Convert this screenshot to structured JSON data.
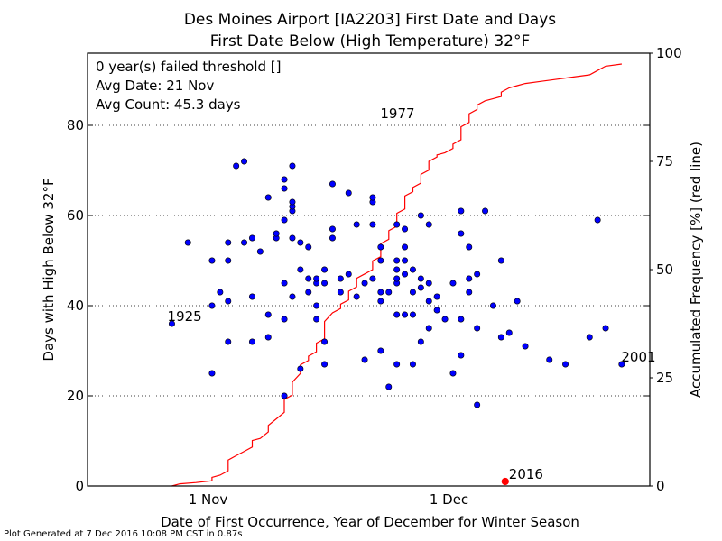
{
  "chart_data": {
    "type": "scatter",
    "title_line1": "Des Moines Airport [IA2203] First Date and Days",
    "title_line2": "First Date Below (High Temperature) 32°F",
    "xlabel": "Date of First Occurrence, Year of December for Winter Season",
    "ylabel": "Days with High Below 32°F",
    "y2label": "Accumulated Frequency [%] (red line)",
    "x_ticks": [
      {
        "day": 0,
        "label": "1 Nov"
      },
      {
        "day": 30,
        "label": "1 Dec"
      }
    ],
    "xlim": [
      -15,
      55
    ],
    "ylim": [
      0,
      96
    ],
    "y_ticks": [
      0,
      20,
      40,
      60,
      80
    ],
    "y2lim": [
      0,
      100
    ],
    "y2_ticks": [
      0,
      25,
      50,
      75,
      100
    ],
    "grid": true,
    "info_box": {
      "line1": "0 year(s) failed threshold []",
      "line2": "Avg Date: 21 Nov",
      "line3": "Avg Count: 45.3 days"
    },
    "annotations": [
      {
        "text": "1977",
        "x": 21,
        "y": 81
      },
      {
        "text": "1925",
        "x": -5.5,
        "y": 36
      },
      {
        "text": "2001",
        "x": 51,
        "y": 27
      },
      {
        "text": "2016",
        "x": 37,
        "y": 1,
        "color": "#ff0000"
      }
    ],
    "current": {
      "year": "2016",
      "x": 37,
      "y": 1,
      "color": "#ff0000"
    },
    "points": [
      [
        -4.5,
        36
      ],
      [
        -2.5,
        54
      ],
      [
        0.5,
        25
      ],
      [
        0.5,
        40
      ],
      [
        0.5,
        50
      ],
      [
        1.5,
        43
      ],
      [
        2.5,
        32
      ],
      [
        2.5,
        41
      ],
      [
        2.5,
        50
      ],
      [
        2.5,
        54
      ],
      [
        3.5,
        71
      ],
      [
        4.5,
        54
      ],
      [
        4.5,
        72
      ],
      [
        5.5,
        32
      ],
      [
        5.5,
        42
      ],
      [
        5.5,
        55
      ],
      [
        6.5,
        52
      ],
      [
        7.5,
        64
      ],
      [
        7.5,
        38
      ],
      [
        7.5,
        33
      ],
      [
        8.5,
        55
      ],
      [
        8.5,
        56
      ],
      [
        9.5,
        20
      ],
      [
        9.5,
        37
      ],
      [
        9.5,
        45
      ],
      [
        9.5,
        59
      ],
      [
        9.5,
        66
      ],
      [
        9.5,
        68
      ],
      [
        10.5,
        42
      ],
      [
        10.5,
        55
      ],
      [
        10.5,
        61
      ],
      [
        10.5,
        62
      ],
      [
        10.5,
        63
      ],
      [
        10.5,
        71
      ],
      [
        11.5,
        26
      ],
      [
        11.5,
        48
      ],
      [
        11.5,
        54
      ],
      [
        12.5,
        43
      ],
      [
        12.5,
        46
      ],
      [
        12.5,
        53
      ],
      [
        13.5,
        40
      ],
      [
        13.5,
        45
      ],
      [
        13.5,
        46
      ],
      [
        13.5,
        37
      ],
      [
        14.5,
        27
      ],
      [
        14.5,
        32
      ],
      [
        14.5,
        45
      ],
      [
        14.5,
        48
      ],
      [
        15.5,
        55
      ],
      [
        15.5,
        57
      ],
      [
        15.5,
        67
      ],
      [
        16.5,
        43
      ],
      [
        16.5,
        46
      ],
      [
        17.5,
        47
      ],
      [
        17.5,
        65
      ],
      [
        18.5,
        42
      ],
      [
        18.5,
        58
      ],
      [
        19.5,
        28
      ],
      [
        19.5,
        45
      ],
      [
        20.5,
        46
      ],
      [
        20.5,
        58
      ],
      [
        20.5,
        63
      ],
      [
        20.5,
        64
      ],
      [
        21.5,
        30
      ],
      [
        21.5,
        41
      ],
      [
        21.5,
        43
      ],
      [
        21.5,
        50
      ],
      [
        21.5,
        53
      ],
      [
        22.5,
        22
      ],
      [
        22.5,
        43
      ],
      [
        23.5,
        27
      ],
      [
        23.5,
        38
      ],
      [
        23.5,
        45
      ],
      [
        23.5,
        46
      ],
      [
        23.5,
        48
      ],
      [
        23.5,
        50
      ],
      [
        23.5,
        58
      ],
      [
        24.5,
        38
      ],
      [
        24.5,
        47
      ],
      [
        24.5,
        50
      ],
      [
        24.5,
        53
      ],
      [
        24.5,
        57
      ],
      [
        25.5,
        27
      ],
      [
        25.5,
        38
      ],
      [
        25.5,
        43
      ],
      [
        25.5,
        48
      ],
      [
        26.5,
        32
      ],
      [
        26.5,
        44
      ],
      [
        26.5,
        46
      ],
      [
        26.5,
        60
      ],
      [
        27.5,
        35
      ],
      [
        27.5,
        41
      ],
      [
        27.5,
        45
      ],
      [
        27.5,
        58
      ],
      [
        28.5,
        39
      ],
      [
        28.5,
        42
      ],
      [
        29.5,
        37
      ],
      [
        30.5,
        25
      ],
      [
        30.5,
        45
      ],
      [
        31.5,
        29
      ],
      [
        31.5,
        37
      ],
      [
        31.5,
        56
      ],
      [
        31.5,
        61
      ],
      [
        32.5,
        43
      ],
      [
        32.5,
        46
      ],
      [
        32.5,
        53
      ],
      [
        33.5,
        18
      ],
      [
        33.5,
        35
      ],
      [
        33.5,
        47
      ],
      [
        34.5,
        61
      ],
      [
        35.5,
        40
      ],
      [
        36.5,
        33
      ],
      [
        36.5,
        50
      ],
      [
        37.5,
        34
      ],
      [
        38.5,
        41
      ],
      [
        39.5,
        31
      ],
      [
        42.5,
        28
      ],
      [
        44.5,
        27
      ],
      [
        47.5,
        33
      ],
      [
        48.5,
        59
      ],
      [
        49.5,
        35
      ],
      [
        51.5,
        27
      ]
    ],
    "cdf_points": [
      [
        -4.5,
        0
      ],
      [
        -3.5,
        0.5
      ],
      [
        -1.5,
        0.8
      ],
      [
        0.5,
        1.2
      ],
      [
        0.5,
        2
      ],
      [
        1.5,
        2.5
      ],
      [
        2.5,
        3.5
      ],
      [
        2.5,
        5
      ],
      [
        2.5,
        6
      ],
      [
        3.5,
        7
      ],
      [
        4.5,
        8
      ],
      [
        5.5,
        9
      ],
      [
        5.5,
        10.5
      ],
      [
        6.5,
        11
      ],
      [
        7.5,
        12.5
      ],
      [
        7.5,
        14
      ],
      [
        8.5,
        15.5
      ],
      [
        9.5,
        17
      ],
      [
        9.5,
        20
      ],
      [
        10.5,
        21
      ],
      [
        10.5,
        24
      ],
      [
        11.5,
        26
      ],
      [
        11.5,
        28
      ],
      [
        12.5,
        29
      ],
      [
        12.5,
        30
      ],
      [
        13.5,
        31
      ],
      [
        13.5,
        33
      ],
      [
        14.5,
        34
      ],
      [
        14.5,
        38
      ],
      [
        15.5,
        40
      ],
      [
        16.5,
        41
      ],
      [
        16.5,
        42
      ],
      [
        17.5,
        43
      ],
      [
        17.5,
        45
      ],
      [
        18.5,
        46
      ],
      [
        18.5,
        48
      ],
      [
        19.5,
        49
      ],
      [
        20.5,
        50
      ],
      [
        20.5,
        52
      ],
      [
        21.5,
        53
      ],
      [
        21.5,
        56
      ],
      [
        22.5,
        57
      ],
      [
        22.5,
        59
      ],
      [
        23.5,
        60
      ],
      [
        23.5,
        63
      ],
      [
        24.5,
        64
      ],
      [
        24.5,
        67
      ],
      [
        25.5,
        68
      ],
      [
        25.5,
        69
      ],
      [
        26.5,
        70
      ],
      [
        26.5,
        72
      ],
      [
        27.5,
        73
      ],
      [
        27.5,
        75
      ],
      [
        28.5,
        76
      ],
      [
        28.5,
        76.5
      ],
      [
        29.5,
        77
      ],
      [
        30.5,
        78
      ],
      [
        30.5,
        79
      ],
      [
        31.5,
        80
      ],
      [
        31.5,
        83
      ],
      [
        32.5,
        84
      ],
      [
        32.5,
        86
      ],
      [
        33.5,
        87
      ],
      [
        33.5,
        88
      ],
      [
        34.5,
        89
      ],
      [
        35.5,
        89.5
      ],
      [
        36.5,
        90
      ],
      [
        36.5,
        91
      ],
      [
        37.5,
        92
      ],
      [
        38.5,
        92.5
      ],
      [
        39.5,
        93
      ],
      [
        41.5,
        93.5
      ],
      [
        43.5,
        94
      ],
      [
        45.5,
        94.5
      ],
      [
        47.5,
        95
      ],
      [
        48.5,
        96
      ],
      [
        49.5,
        97
      ],
      [
        51.5,
        97.5
      ]
    ]
  },
  "footer_text": "Plot Generated at 7 Dec 2016 10:08 PM CST in 0.87s",
  "colors": {
    "points": "#0000ff",
    "cdf_line": "#ff0000",
    "current": "#ff0000",
    "grid": "#000000"
  }
}
